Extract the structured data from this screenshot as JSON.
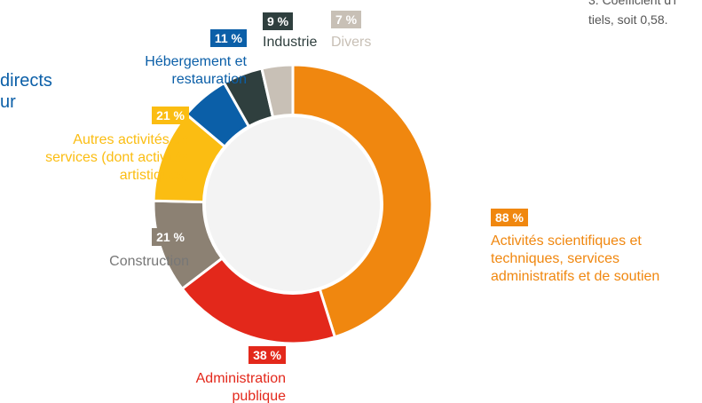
{
  "chart_data": {
    "type": "donut",
    "categories": [
      "Activités scientifiques et\ntechniques, services\nadministratifs et de soutien",
      "Administration\npublique",
      "Construction",
      "Autres activités de\nservices (dont activités\nartistiques)",
      "Hébergement et\nrestauration",
      "Industrie",
      "Divers"
    ],
    "values": [
      88,
      38,
      21,
      21,
      11,
      9,
      7
    ],
    "value_labels": [
      "88 %",
      "38 %",
      "21 %",
      "21 %",
      "11 %",
      "9 %",
      "7 %"
    ],
    "colors": [
      "#f0870f",
      "#e3281b",
      "#8c8173",
      "#fbbd12",
      "#0b5fa8",
      "#2f3f3e",
      "#c8c0b6"
    ],
    "fragments": [
      "directs",
      "ur",
      "3. Coefficient d'i",
      "tiels, soit 0,58."
    ]
  }
}
